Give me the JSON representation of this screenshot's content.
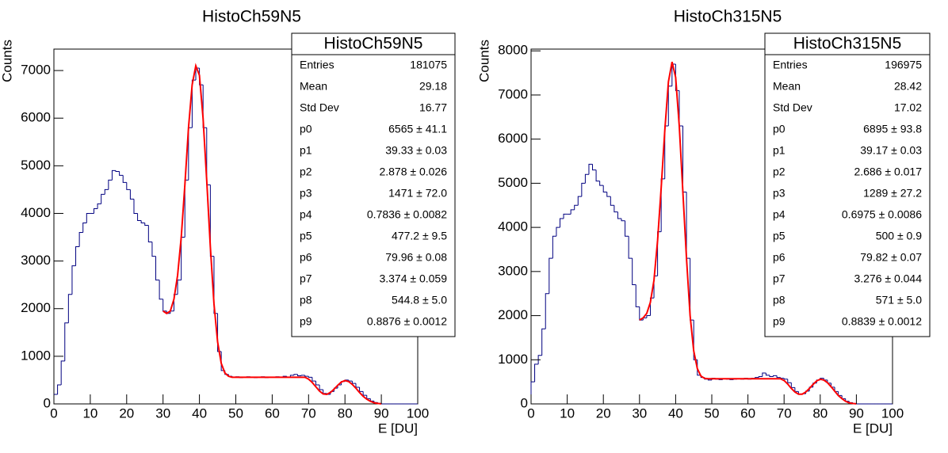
{
  "chart_data": [
    {
      "type": "histogram",
      "title": "HistoCh59N5",
      "xlabel": "E [DU]",
      "ylabel": "Counts",
      "bins": [
        0,
        1,
        2,
        3,
        4,
        5,
        6,
        7,
        8,
        9,
        10,
        11,
        12,
        13,
        14,
        15,
        16,
        17,
        18,
        19,
        20,
        21,
        22,
        23,
        24,
        25,
        26,
        27,
        28,
        29,
        30,
        31,
        32,
        33,
        34,
        35,
        36,
        37,
        38,
        39,
        40,
        41,
        42,
        43,
        44,
        45,
        46,
        47,
        48,
        49,
        50,
        51,
        52,
        53,
        54,
        55,
        56,
        57,
        58,
        59,
        60,
        61,
        62,
        63,
        64,
        65,
        66,
        67,
        68,
        69,
        70,
        71,
        72,
        73,
        74,
        75,
        76,
        77,
        78,
        79,
        80,
        81,
        82,
        83,
        84,
        85,
        86,
        87,
        88,
        89,
        90,
        91,
        92,
        93,
        94,
        95,
        96,
        97,
        98,
        99,
        100
      ],
      "counts": [
        200,
        400,
        900,
        1700,
        2300,
        2900,
        3300,
        3600,
        3800,
        4000,
        4000,
        4100,
        4200,
        4400,
        4500,
        4700,
        4900,
        4880,
        4800,
        4650,
        4500,
        4300,
        4000,
        3850,
        3800,
        3750,
        3400,
        3100,
        2600,
        2200,
        1950,
        1900,
        1950,
        2300,
        2600,
        3500,
        4700,
        5800,
        6800,
        7050,
        6700,
        5800,
        4600,
        3100,
        1900,
        1100,
        700,
        620,
        580,
        560,
        570,
        550,
        560,
        570,
        560,
        550,
        560,
        570,
        550,
        560,
        560,
        570,
        560,
        580,
        560,
        600,
        620,
        590,
        600,
        580,
        560,
        480,
        400,
        300,
        220,
        200,
        260,
        330,
        400,
        470,
        500,
        480,
        430,
        350,
        260,
        180,
        110,
        60,
        30,
        10,
        0,
        0,
        0,
        0,
        0,
        0,
        0,
        0,
        0,
        0
      ],
      "color": "#000080",
      "fit": {
        "color": "#ff0000",
        "x": [
          30,
          31,
          32,
          33,
          34,
          35,
          36,
          37,
          38,
          39,
          40,
          41,
          42,
          43,
          44,
          45,
          46,
          47,
          48,
          49,
          50,
          51,
          52,
          53,
          54,
          55,
          56,
          57,
          58,
          59,
          60,
          61,
          62,
          63,
          64,
          65,
          66,
          67,
          68,
          69,
          70,
          71,
          72,
          73,
          74,
          75,
          76,
          77,
          78,
          79,
          80,
          81,
          82,
          83,
          84,
          85,
          86,
          87,
          88,
          89,
          90
        ],
        "values": [
          1950,
          1900,
          1950,
          2200,
          2700,
          3500,
          4600,
          5800,
          6700,
          7100,
          6900,
          6000,
          4700,
          3300,
          2100,
          1300,
          850,
          650,
          580,
          560,
          560,
          560,
          560,
          560,
          560,
          560,
          560,
          560,
          560,
          560,
          560,
          560,
          560,
          560,
          560,
          560,
          560,
          560,
          560,
          560,
          520,
          450,
          360,
          270,
          210,
          200,
          240,
          310,
          390,
          460,
          490,
          470,
          410,
          330,
          240,
          160,
          100,
          55,
          25,
          10,
          3
        ]
      },
      "xlim": [
        0,
        100
      ],
      "ylim": [
        0,
        7450
      ],
      "xticks": [
        0,
        10,
        20,
        30,
        40,
        50,
        60,
        70,
        80,
        90,
        100
      ],
      "yticks": [
        0,
        1000,
        2000,
        3000,
        4000,
        5000,
        6000,
        7000
      ],
      "stats": {
        "title": "HistoCh59N5",
        "rows": [
          [
            "Entries",
            "181075"
          ],
          [
            "Mean",
            "29.18"
          ],
          [
            "Std Dev",
            "16.77"
          ],
          [
            "p0",
            "6565 ± 41.1"
          ],
          [
            "p1",
            "39.33 ± 0.03"
          ],
          [
            "p2",
            "2.878 ± 0.026"
          ],
          [
            "p3",
            "1471 ± 72.0"
          ],
          [
            "p4",
            "0.7836 ± 0.0082"
          ],
          [
            "p5",
            "477.2 ± 9.5"
          ],
          [
            "p6",
            "79.96 ± 0.08"
          ],
          [
            "p7",
            "3.374 ± 0.059"
          ],
          [
            "p8",
            "544.8 ± 5.0"
          ],
          [
            "p9",
            "0.8876 ± 0.0012"
          ]
        ]
      }
    },
    {
      "type": "histogram",
      "title": "HistoCh315N5",
      "xlabel": "E [DU]",
      "ylabel": "Counts",
      "bins": [
        0,
        1,
        2,
        3,
        4,
        5,
        6,
        7,
        8,
        9,
        10,
        11,
        12,
        13,
        14,
        15,
        16,
        17,
        18,
        19,
        20,
        21,
        22,
        23,
        24,
        25,
        26,
        27,
        28,
        29,
        30,
        31,
        32,
        33,
        34,
        35,
        36,
        37,
        38,
        39,
        40,
        41,
        42,
        43,
        44,
        45,
        46,
        47,
        48,
        49,
        50,
        51,
        52,
        53,
        54,
        55,
        56,
        57,
        58,
        59,
        60,
        61,
        62,
        63,
        64,
        65,
        66,
        67,
        68,
        69,
        70,
        71,
        72,
        73,
        74,
        75,
        76,
        77,
        78,
        79,
        80,
        81,
        82,
        83,
        84,
        85,
        86,
        87,
        88,
        89,
        90,
        91,
        92,
        93,
        94,
        95,
        96,
        97,
        98,
        99,
        100
      ],
      "counts": [
        500,
        900,
        1100,
        1700,
        2500,
        3300,
        3800,
        4000,
        4200,
        4300,
        4300,
        4400,
        4500,
        4700,
        5000,
        5200,
        5430,
        5300,
        5050,
        4950,
        4800,
        4700,
        4500,
        4350,
        4200,
        4150,
        3800,
        3300,
        2700,
        2200,
        1900,
        1950,
        2000,
        2400,
        2900,
        3900,
        5100,
        6300,
        7200,
        7700,
        7100,
        6300,
        4800,
        3300,
        1900,
        1000,
        650,
        600,
        560,
        540,
        580,
        560,
        550,
        570,
        560,
        550,
        560,
        570,
        560,
        580,
        560,
        580,
        600,
        620,
        700,
        650,
        620,
        640,
        600,
        580,
        560,
        480,
        370,
        280,
        220,
        230,
        290,
        380,
        470,
        540,
        580,
        540,
        470,
        380,
        280,
        190,
        120,
        60,
        30,
        10,
        0,
        0,
        0,
        0,
        0,
        0,
        0,
        0,
        0,
        0
      ],
      "color": "#000080",
      "fit": {
        "color": "#ff0000",
        "x": [
          30,
          31,
          32,
          33,
          34,
          35,
          36,
          37,
          38,
          39,
          40,
          41,
          42,
          43,
          44,
          45,
          46,
          47,
          48,
          49,
          50,
          51,
          52,
          53,
          54,
          55,
          56,
          57,
          58,
          59,
          60,
          61,
          62,
          63,
          64,
          65,
          66,
          67,
          68,
          69,
          70,
          71,
          72,
          73,
          74,
          75,
          76,
          77,
          78,
          79,
          80,
          81,
          82,
          83,
          84,
          85,
          86,
          87,
          88,
          89,
          90
        ],
        "values": [
          1900,
          1950,
          2050,
          2300,
          2800,
          3700,
          4900,
          6200,
          7300,
          7750,
          7400,
          6300,
          4800,
          3300,
          2000,
          1200,
          800,
          630,
          580,
          570,
          570,
          570,
          570,
          570,
          570,
          570,
          570,
          570,
          570,
          570,
          570,
          570,
          570,
          570,
          570,
          570,
          570,
          570,
          570,
          570,
          530,
          450,
          350,
          270,
          220,
          220,
          270,
          350,
          440,
          520,
          560,
          540,
          480,
          390,
          290,
          190,
          120,
          60,
          25,
          10,
          3
        ]
      },
      "xlim": [
        0,
        100
      ],
      "ylim": [
        0,
        8040
      ],
      "xticks": [
        0,
        10,
        20,
        30,
        40,
        50,
        60,
        70,
        80,
        90,
        100
      ],
      "yticks": [
        0,
        1000,
        2000,
        3000,
        4000,
        5000,
        6000,
        7000,
        8000
      ],
      "stats": {
        "title": "HistoCh315N5",
        "rows": [
          [
            "Entries",
            "196975"
          ],
          [
            "Mean",
            "28.42"
          ],
          [
            "Std Dev",
            "17.02"
          ],
          [
            "p0",
            "6895 ± 93.8"
          ],
          [
            "p1",
            "39.17 ± 0.03"
          ],
          [
            "p2",
            "2.686 ± 0.017"
          ],
          [
            "p3",
            "1289 ± 27.2"
          ],
          [
            "p4",
            "0.6975 ± 0.0086"
          ],
          [
            "p5",
            "500 ± 0.9"
          ],
          [
            "p6",
            "79.82 ± 0.07"
          ],
          [
            "p7",
            "3.276 ± 0.044"
          ],
          [
            "p8",
            "571 ± 5.0"
          ],
          [
            "p9",
            "0.8839 ± 0.0012"
          ]
        ]
      }
    }
  ]
}
